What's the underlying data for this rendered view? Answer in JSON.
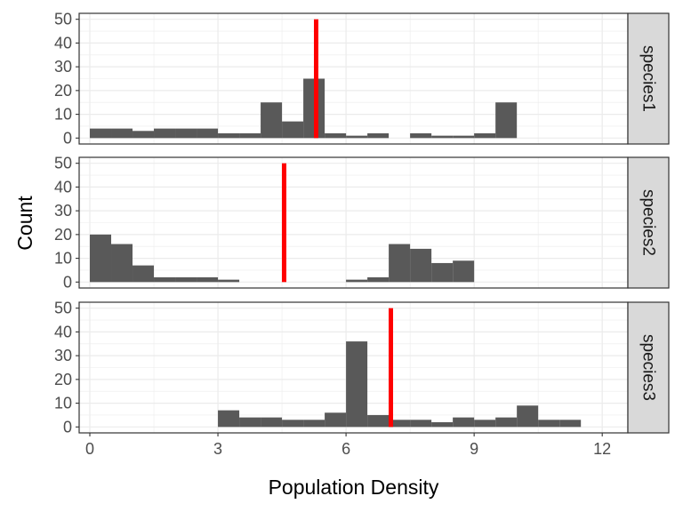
{
  "chart_data": {
    "type": "histogram",
    "xlabel": "Population Density",
    "ylabel": "Count",
    "xlim": [
      -0.25,
      12.6
    ],
    "ylim": [
      -2.5,
      52.5
    ],
    "x_ticks": [
      0,
      3,
      6,
      9,
      12
    ],
    "x_tick_labels": [
      "0",
      "3",
      "6",
      "9",
      "12"
    ],
    "y_ticks": [
      0,
      10,
      20,
      30,
      40,
      50
    ],
    "y_tick_labels": [
      "0",
      "10",
      "20",
      "30",
      "40",
      "50"
    ],
    "bin_width": 0.5,
    "grid": true,
    "legend": "none",
    "colors": {
      "bar": "#595959",
      "mean_line": "#ff0000",
      "strip_fill": "#d9d9d9",
      "grid": "#ebebeb",
      "frame": "#333333"
    },
    "panels": [
      {
        "strip_label": "species1",
        "mean_line_x": 5.3,
        "bins": [
          {
            "x": 0.25,
            "count": 4
          },
          {
            "x": 0.75,
            "count": 4
          },
          {
            "x": 1.25,
            "count": 3
          },
          {
            "x": 1.75,
            "count": 4
          },
          {
            "x": 2.25,
            "count": 4
          },
          {
            "x": 2.75,
            "count": 4
          },
          {
            "x": 3.25,
            "count": 2
          },
          {
            "x": 3.75,
            "count": 2
          },
          {
            "x": 4.25,
            "count": 15
          },
          {
            "x": 4.75,
            "count": 7
          },
          {
            "x": 5.25,
            "count": 25
          },
          {
            "x": 5.75,
            "count": 2
          },
          {
            "x": 6.25,
            "count": 1
          },
          {
            "x": 6.75,
            "count": 2
          },
          {
            "x": 7.75,
            "count": 2
          },
          {
            "x": 8.25,
            "count": 1
          },
          {
            "x": 8.75,
            "count": 1
          },
          {
            "x": 9.25,
            "count": 2
          },
          {
            "x": 9.75,
            "count": 15
          }
        ]
      },
      {
        "strip_label": "species2",
        "mean_line_x": 4.55,
        "bins": [
          {
            "x": 0.25,
            "count": 20
          },
          {
            "x": 0.75,
            "count": 16
          },
          {
            "x": 1.25,
            "count": 7
          },
          {
            "x": 1.75,
            "count": 2
          },
          {
            "x": 2.25,
            "count": 2
          },
          {
            "x": 2.75,
            "count": 2
          },
          {
            "x": 3.25,
            "count": 1
          },
          {
            "x": 6.25,
            "count": 1
          },
          {
            "x": 6.75,
            "count": 2
          },
          {
            "x": 7.25,
            "count": 16
          },
          {
            "x": 7.75,
            "count": 14
          },
          {
            "x": 8.25,
            "count": 8
          },
          {
            "x": 8.75,
            "count": 9
          }
        ]
      },
      {
        "strip_label": "species3",
        "mean_line_x": 7.05,
        "bins": [
          {
            "x": 3.25,
            "count": 7
          },
          {
            "x": 3.75,
            "count": 4
          },
          {
            "x": 4.25,
            "count": 4
          },
          {
            "x": 4.75,
            "count": 3
          },
          {
            "x": 5.25,
            "count": 3
          },
          {
            "x": 5.75,
            "count": 6
          },
          {
            "x": 6.25,
            "count": 36
          },
          {
            "x": 6.75,
            "count": 5
          },
          {
            "x": 7.25,
            "count": 3
          },
          {
            "x": 7.75,
            "count": 3
          },
          {
            "x": 8.25,
            "count": 2
          },
          {
            "x": 8.75,
            "count": 4
          },
          {
            "x": 9.25,
            "count": 3
          },
          {
            "x": 9.75,
            "count": 4
          },
          {
            "x": 10.25,
            "count": 9
          },
          {
            "x": 10.75,
            "count": 3
          },
          {
            "x": 11.25,
            "count": 3
          }
        ]
      }
    ]
  }
}
